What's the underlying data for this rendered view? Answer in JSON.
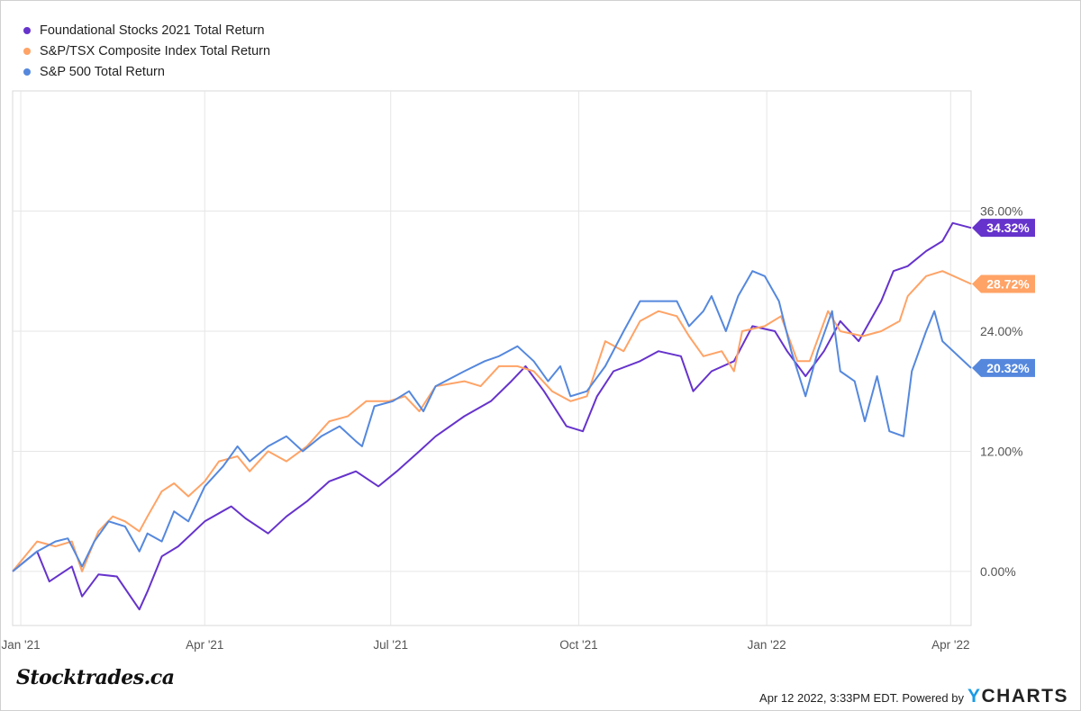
{
  "chart_data": {
    "type": "line",
    "title": "",
    "xlabel": "",
    "ylabel": "",
    "x_unit": "days since 2021-01-01",
    "xlim": [
      -4,
      465
    ],
    "ylim": [
      -5.4,
      48
    ],
    "grid": true,
    "legend_position": "top-left",
    "x_ticks": [
      {
        "value": 0,
        "label": "Jan '21"
      },
      {
        "value": 90,
        "label": "Apr '21"
      },
      {
        "value": 181,
        "label": "Jul '21"
      },
      {
        "value": 273,
        "label": "Oct '21"
      },
      {
        "value": 365,
        "label": "Jan '22"
      },
      {
        "value": 455,
        "label": "Apr '22"
      }
    ],
    "y_ticks": [
      {
        "value": 0,
        "label": "0.00%"
      },
      {
        "value": 12,
        "label": "12.00%"
      },
      {
        "value": 24,
        "label": "24.00%"
      },
      {
        "value": 36,
        "label": "36.00%"
      }
    ],
    "series": [
      {
        "name": "Foundational Stocks 2021 Total Return",
        "color": "#6633cc",
        "end_label": "34.32%",
        "x": [
          -4,
          8,
          14,
          25,
          30,
          38,
          47,
          58,
          62,
          69,
          77,
          90,
          103,
          110,
          121,
          130,
          140,
          151,
          164,
          175,
          184,
          195,
          203,
          217,
          230,
          240,
          247,
          256,
          267,
          275,
          282,
          290,
          303,
          312,
          323,
          329,
          338,
          349,
          358,
          369,
          375,
          384,
          393,
          401,
          410,
          421,
          427,
          434,
          443,
          451,
          456,
          465
        ],
        "y": [
          0,
          2,
          -1,
          0.5,
          -2.5,
          -0.3,
          -0.5,
          -3.8,
          -2,
          1.5,
          2.5,
          5,
          6.5,
          5.3,
          3.8,
          5.5,
          7,
          9,
          10,
          8.5,
          10,
          12,
          13.5,
          15.5,
          17,
          19,
          20.5,
          18,
          14.5,
          14,
          17.5,
          20,
          21,
          22,
          21.5,
          18,
          20,
          21,
          24.5,
          24,
          22,
          19.5,
          22,
          25,
          23,
          27,
          30,
          30.5,
          32,
          33,
          34.8,
          34.32
        ]
      },
      {
        "name": "S&P/TSX Composite Index Total Return",
        "color": "#ffa366",
        "end_label": "28.72%",
        "x": [
          -4,
          8,
          17,
          25,
          30,
          38,
          45,
          51,
          58,
          62,
          69,
          75,
          82,
          90,
          97,
          106,
          112,
          121,
          130,
          140,
          151,
          160,
          169,
          180,
          188,
          195,
          203,
          217,
          225,
          234,
          243,
          251,
          260,
          269,
          277,
          286,
          295,
          303,
          312,
          321,
          327,
          334,
          343,
          349,
          353,
          364,
          372,
          380,
          386,
          395,
          401,
          412,
          421,
          430,
          434,
          443,
          451,
          465
        ],
        "y": [
          0,
          3,
          2.5,
          3,
          0,
          4,
          5.5,
          5,
          4,
          5.5,
          8,
          8.8,
          7.5,
          9,
          11,
          11.5,
          10,
          12,
          11,
          12.5,
          15,
          15.5,
          17,
          17,
          17.5,
          16,
          18.5,
          19,
          18.5,
          20.5,
          20.5,
          20,
          18,
          17,
          17.5,
          23,
          22,
          25,
          26,
          25.5,
          23.5,
          21.5,
          22,
          20,
          24,
          24.5,
          25.5,
          21,
          21,
          26,
          24,
          23.5,
          24,
          25,
          27.5,
          29.5,
          30,
          28.72
        ]
      },
      {
        "name": "S&P 500 Total Return",
        "color": "#5588dd",
        "end_label": "20.32%",
        "x": [
          -4,
          8,
          17,
          23,
          30,
          36,
          43,
          51,
          58,
          62,
          69,
          75,
          82,
          90,
          99,
          106,
          112,
          121,
          130,
          138,
          147,
          156,
          164,
          167,
          173,
          182,
          190,
          197,
          203,
          217,
          227,
          234,
          243,
          251,
          258,
          264,
          269,
          277,
          286,
          295,
          303,
          312,
          321,
          327,
          334,
          338,
          345,
          351,
          358,
          364,
          371,
          377,
          384,
          390,
          397,
          401,
          408,
          413,
          419,
          425,
          432,
          436,
          443,
          447,
          451,
          465
        ],
        "y": [
          0,
          2,
          3,
          3.3,
          0.5,
          3,
          5,
          4.5,
          2,
          3.8,
          3,
          6,
          5,
          8.5,
          10.5,
          12.5,
          11,
          12.5,
          13.5,
          12,
          13.5,
          14.5,
          13,
          12.5,
          16.5,
          17,
          18,
          16,
          18.5,
          20,
          21,
          21.5,
          22.5,
          21,
          19,
          20.5,
          17.5,
          18,
          20.5,
          24,
          27,
          27,
          27,
          24.5,
          26,
          27.5,
          24,
          27.5,
          30,
          29.5,
          27,
          22,
          17.5,
          22,
          26,
          20,
          19,
          15,
          19.5,
          14,
          13.5,
          20,
          24,
          26,
          23,
          20.32
        ]
      }
    ]
  },
  "footer": {
    "brand_logo": "Stocktrades.ca",
    "timestamp": "Apr 12 2022, 3:33PM EDT.",
    "powered_by": "Powered by",
    "ycharts_y": "Y",
    "ycharts_rest": "CHARTS"
  }
}
